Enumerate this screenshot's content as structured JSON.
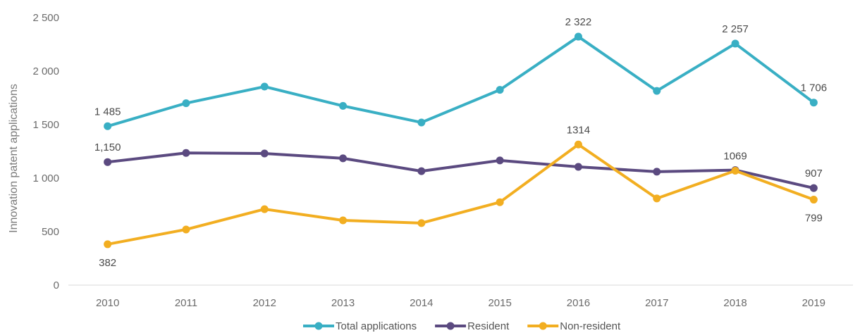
{
  "chart_data": {
    "type": "line",
    "title": "",
    "xlabel": "",
    "ylabel": "Innovation patent applications",
    "categories": [
      "2010",
      "2011",
      "2012",
      "2013",
      "2014",
      "2015",
      "2016",
      "2017",
      "2018",
      "2019"
    ],
    "ylim": [
      0,
      2500
    ],
    "yticks": [
      0,
      500,
      1000,
      1500,
      2000,
      2500
    ],
    "ytick_labels": [
      "0",
      "500",
      "1 000",
      "1 500",
      "2 000",
      "2 500"
    ],
    "grid": false,
    "legend_position": "bottom",
    "series": [
      {
        "name": "Total applications",
        "color": "#39afc4",
        "values": [
          1485,
          1700,
          1855,
          1675,
          1520,
          1825,
          2322,
          1815,
          2257,
          1706
        ],
        "labels": [
          {
            "index": 0,
            "text": "1 485",
            "pos": "above"
          },
          {
            "index": 6,
            "text": "2 322",
            "pos": "above"
          },
          {
            "index": 8,
            "text": "2 257",
            "pos": "above"
          },
          {
            "index": 9,
            "text": "1 706",
            "pos": "above"
          }
        ]
      },
      {
        "name": "Resident",
        "color": "#5b4a80",
        "values": [
          1150,
          1235,
          1230,
          1185,
          1065,
          1165,
          1105,
          1060,
          1075,
          907
        ],
        "labels": [
          {
            "index": 0,
            "text": "1,150",
            "pos": "above"
          },
          {
            "index": 9,
            "text": "907",
            "pos": "above"
          }
        ]
      },
      {
        "name": "Non-resident",
        "color": "#f2ae21",
        "values": [
          382,
          520,
          710,
          605,
          580,
          775,
          1314,
          810,
          1069,
          799
        ],
        "labels": [
          {
            "index": 0,
            "text": "382",
            "pos": "below"
          },
          {
            "index": 6,
            "text": "1314",
            "pos": "above"
          },
          {
            "index": 8,
            "text": "1069",
            "pos": "above"
          },
          {
            "index": 9,
            "text": "799",
            "pos": "below"
          }
        ]
      }
    ]
  }
}
